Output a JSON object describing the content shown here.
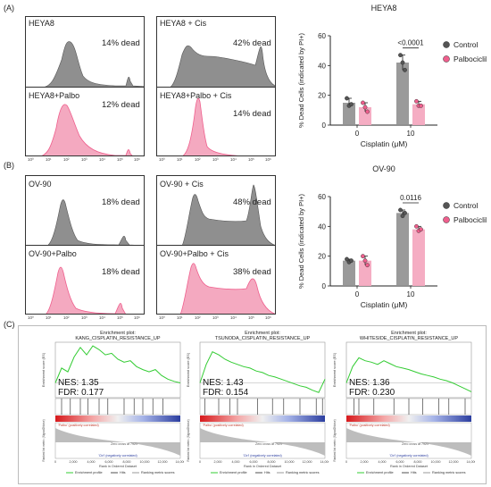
{
  "panel_labels": {
    "a": "(A)",
    "b": "(B)",
    "c": "(C)"
  },
  "histogram_ticks": [
    "10⁰",
    "10¹",
    "10²",
    "10³",
    "10⁴",
    "10⁵",
    "10⁶"
  ],
  "histograms": {
    "a": [
      {
        "label": "HEYA8",
        "dead": "14% dead"
      },
      {
        "label": "HEYA8 + Cis",
        "dead": "42% dead"
      },
      {
        "label": "HEYA8+Palbo",
        "dead": "12% dead"
      },
      {
        "label": "HEYA8+Palbo + Cis",
        "dead": "14% dead"
      }
    ],
    "b": [
      {
        "label": "OV-90",
        "dead": "18% dead"
      },
      {
        "label": "OV-90 + Cis",
        "dead": "48% dead"
      },
      {
        "label": "OV-90+Palbo",
        "dead": "18% dead"
      },
      {
        "label": "OV-90+Palbo + Cis",
        "dead": "38% dead"
      }
    ]
  },
  "colors": {
    "control": "#8f8f8f",
    "palbo": "#ef5f8d",
    "palbo_fill": "#f4a9c0",
    "gsea_line": "#33cc33"
  },
  "chart_data": [
    {
      "type": "bar",
      "title": "HEYA8",
      "ylabel": "% Dead Cells (indicated by PI+)",
      "xlabel": "Cisplatin (μM)",
      "categories": [
        "0",
        "10"
      ],
      "ylim": [
        0,
        60
      ],
      "yticks": [
        "0",
        "20",
        "40",
        "60"
      ],
      "series": [
        {
          "name": "Control",
          "values": [
            15,
            42
          ],
          "points": [
            [
              18,
              13,
              14
            ],
            [
              47,
              42,
              37
            ]
          ]
        },
        {
          "name": "Palbociclib",
          "values": [
            12,
            14
          ],
          "points": [
            [
              15,
              12,
              9
            ],
            [
              16,
              13,
              13
            ]
          ]
        }
      ],
      "annotation": "<0.0001"
    },
    {
      "type": "bar",
      "title": "OV-90",
      "ylabel": "% Dead Cells (indicated by PI+)",
      "xlabel": "Cisplatin (μM)",
      "categories": [
        "0",
        "10"
      ],
      "ylim": [
        0,
        60
      ],
      "yticks": [
        "0",
        "20",
        "40",
        "60"
      ],
      "series": [
        {
          "name": "Control",
          "values": [
            17,
            49
          ],
          "points": [
            [
              18,
              16,
              17
            ],
            [
              51,
              47,
              49
            ]
          ]
        },
        {
          "name": "Palbociclib",
          "values": [
            17,
            38
          ],
          "points": [
            [
              20,
              17,
              14
            ],
            [
              40,
              37,
              38
            ]
          ]
        }
      ],
      "annotation": "0.0116"
    }
  ],
  "gsea": [
    {
      "title": "Enrichment plot: KANG_CISPLATIN_RESISTANCE_UP",
      "nes": "NES: 1.35",
      "fdr": "FDR: 0.177",
      "enrichment_points": [
        0,
        0.2,
        0.15,
        0.35,
        0.48,
        0.38,
        0.5,
        0.45,
        0.38,
        0.4,
        0.32,
        0.28,
        0.3,
        0.22,
        0.18,
        0.15,
        0.18,
        0.1,
        0.05,
        0.02,
        0
      ]
    },
    {
      "title": "Enrichment plot: TSUNODA_CISPLATIN_RESISTANCE_UP",
      "nes": "NES: 1.43",
      "fdr": "FDR: 0.154",
      "enrichment_points": [
        0,
        0.25,
        0.42,
        0.38,
        0.32,
        0.28,
        0.25,
        0.22,
        0.2,
        0.16,
        0.14,
        0.1,
        0.08,
        0.05,
        0.02,
        -0.01,
        -0.04,
        -0.06,
        -0.1,
        -0.13,
        0.05
      ]
    },
    {
      "title": "Enrichment plot: WHITESIDE_CISPLATIN_RESISTANCE_UP",
      "nes": "NES: 1.36",
      "fdr": "FDR: 0.230",
      "enrichment_points": [
        0,
        0.22,
        0.34,
        0.3,
        0.28,
        0.25,
        0.3,
        0.26,
        0.22,
        0.2,
        0.18,
        0.15,
        0.12,
        0.1,
        0.08,
        0.05,
        0.03,
        0.0,
        -0.04,
        -0.08,
        -0.12
      ]
    }
  ],
  "gsea_common": {
    "ylabel_top": "Enrichment score (ES)",
    "ylabel_bottom": "Ranked list metric (Signal2Noise)",
    "pos_label": "'Palbo' (positively correlated)",
    "neg_label": "'Ctrl' (negatively correlated)",
    "xlabel": "Rank in Ordered Dataset",
    "xticks": [
      "0",
      "2,000",
      "4,000",
      "6,000",
      "8,000",
      "10,000",
      "12,000",
      "14,000"
    ],
    "zero_cross": "Zero cross at 7921",
    "legend": [
      "Enrichment profile",
      "Hits",
      "Ranking metric scores"
    ]
  }
}
